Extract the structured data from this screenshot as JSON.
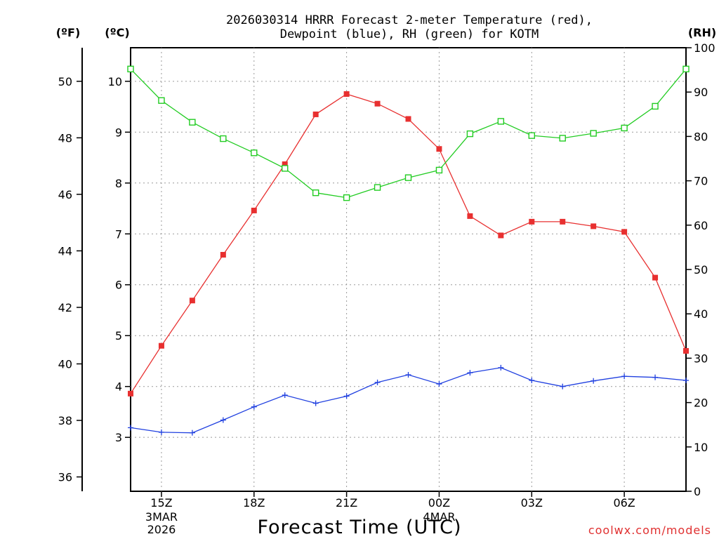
{
  "chart_data": {
    "type": "line",
    "title_line1": "2026030314 HRRR Forecast 2-meter Temperature (red),",
    "title_line2": "Dewpoint (blue), RH (green) for KOTM",
    "xlabel": "Forecast Time (UTC)",
    "credit": "coolwx.com/models",
    "units": {
      "fahrenheit": "(ºF)",
      "celsius": "(ºC)",
      "rh": "(RH)"
    },
    "x_hours": [
      14,
      15,
      16,
      17,
      18,
      19,
      20,
      21,
      22,
      23,
      24,
      25,
      26,
      27,
      28,
      29,
      30,
      31,
      32
    ],
    "x_ticks": [
      {
        "hour": 15,
        "label": "15Z",
        "sub1": "3MAR",
        "sub2": "2026"
      },
      {
        "hour": 18,
        "label": "18Z",
        "sub1": "",
        "sub2": ""
      },
      {
        "hour": 21,
        "label": "21Z",
        "sub1": "",
        "sub2": ""
      },
      {
        "hour": 24,
        "label": "00Z",
        "sub1": "4MAR",
        "sub2": ""
      },
      {
        "hour": 27,
        "label": "03Z",
        "sub1": "",
        "sub2": ""
      },
      {
        "hour": 30,
        "label": "06Z",
        "sub1": "",
        "sub2": ""
      }
    ],
    "celsius_ticks": [
      "3",
      "4",
      "5",
      "6",
      "7",
      "8",
      "9",
      "10"
    ],
    "fahrenheit_ticks": [
      "36",
      "38",
      "40",
      "42",
      "44",
      "46",
      "48",
      "50"
    ],
    "rh_ticks": [
      "0",
      "10",
      "20",
      "30",
      "40",
      "50",
      "60",
      "70",
      "80",
      "90",
      "100"
    ],
    "ylim_celsius": [
      1.94,
      10.66
    ],
    "ylim_rh": [
      0,
      100
    ],
    "series": [
      {
        "name": "Temperature",
        "axis": "celsius",
        "color": "#e83030",
        "marker": "filled-square",
        "values": [
          3.86,
          4.8,
          5.69,
          6.59,
          7.46,
          8.37,
          9.35,
          9.75,
          9.56,
          9.26,
          8.67,
          7.35,
          6.97,
          7.24,
          7.24,
          7.15,
          7.04,
          6.14,
          4.7
        ]
      },
      {
        "name": "Dewpoint",
        "axis": "celsius",
        "color": "#2040e0",
        "marker": "plus",
        "values": [
          3.19,
          3.1,
          3.09,
          3.34,
          3.6,
          3.83,
          3.67,
          3.81,
          4.08,
          4.23,
          4.05,
          4.27,
          4.37,
          4.12,
          4.0,
          4.11,
          4.2,
          4.18,
          4.12
        ]
      },
      {
        "name": "RH",
        "axis": "rh",
        "color": "#22cc22",
        "marker": "open-square",
        "values": [
          95.2,
          88.1,
          83.2,
          79.5,
          76.3,
          72.8,
          67.3,
          66.2,
          68.5,
          70.7,
          72.4,
          80.6,
          83.4,
          80.2,
          79.6,
          80.7,
          81.9,
          86.8,
          95.2
        ]
      }
    ]
  }
}
